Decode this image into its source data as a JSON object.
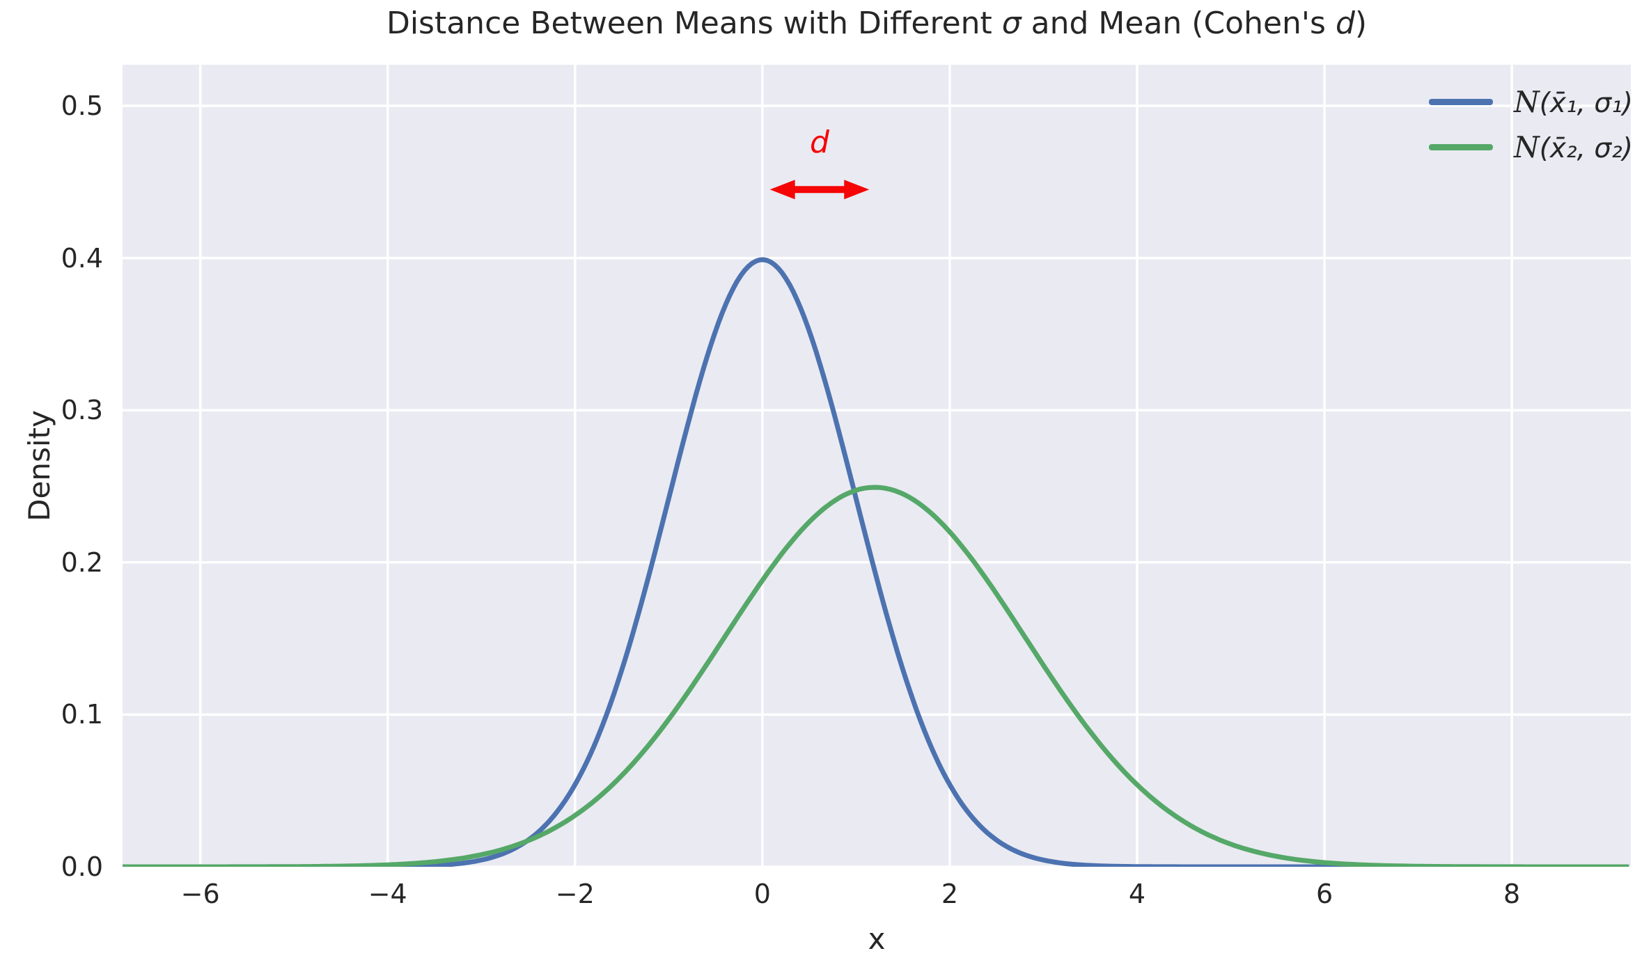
{
  "style": {
    "figure_bg": "#ffffff",
    "axes_bg": "#eaeaf2",
    "grid_color": "#ffffff",
    "text_color": "#262626",
    "blue": "#4c72b0",
    "green": "#55a868",
    "red": "#f50505"
  },
  "title_parts": {
    "pre": "Distance Between Means with Different ",
    "sigma": "σ",
    "mid": " and Mean (Cohen's ",
    "d": "d",
    "post": ")"
  },
  "legend": {
    "items": [
      {
        "script": "N",
        "rest": "(x̄₁, σ₁)"
      },
      {
        "script": "N",
        "rest": "(x̄₂, σ₂)"
      }
    ]
  },
  "chart_data": {
    "type": "line",
    "title": "Distance Between Means with Different σ and Mean (Cohen's d)",
    "xlabel": "x",
    "ylabel": "Density",
    "xlim": [
      -6.83,
      9.27
    ],
    "ylim": [
      0,
      0.527
    ],
    "x_ticks": [
      -6,
      -4,
      -2,
      0,
      2,
      4,
      6,
      8
    ],
    "y_ticks": [
      0.0,
      0.1,
      0.2,
      0.3,
      0.4,
      0.5
    ],
    "grid": true,
    "legend_position": "upper right",
    "series": [
      {
        "name": "𝒩(x̄₁, σ₁)",
        "distribution": "normal",
        "mean": 0,
        "sigma": 1.0,
        "peak_density": 0.399,
        "color": "#4c72b0"
      },
      {
        "name": "𝒩(x̄₂, σ₂)",
        "distribution": "normal",
        "mean": 1.2,
        "sigma": 1.6,
        "peak_density": 0.249,
        "color": "#55a868"
      }
    ],
    "annotation": {
      "label": "d",
      "color": "#f50505",
      "arrow_x_start": 0.08,
      "arrow_x_end": 1.14,
      "arrow_y": 0.445,
      "label_x": 0.61,
      "label_y": 0.473
    }
  }
}
